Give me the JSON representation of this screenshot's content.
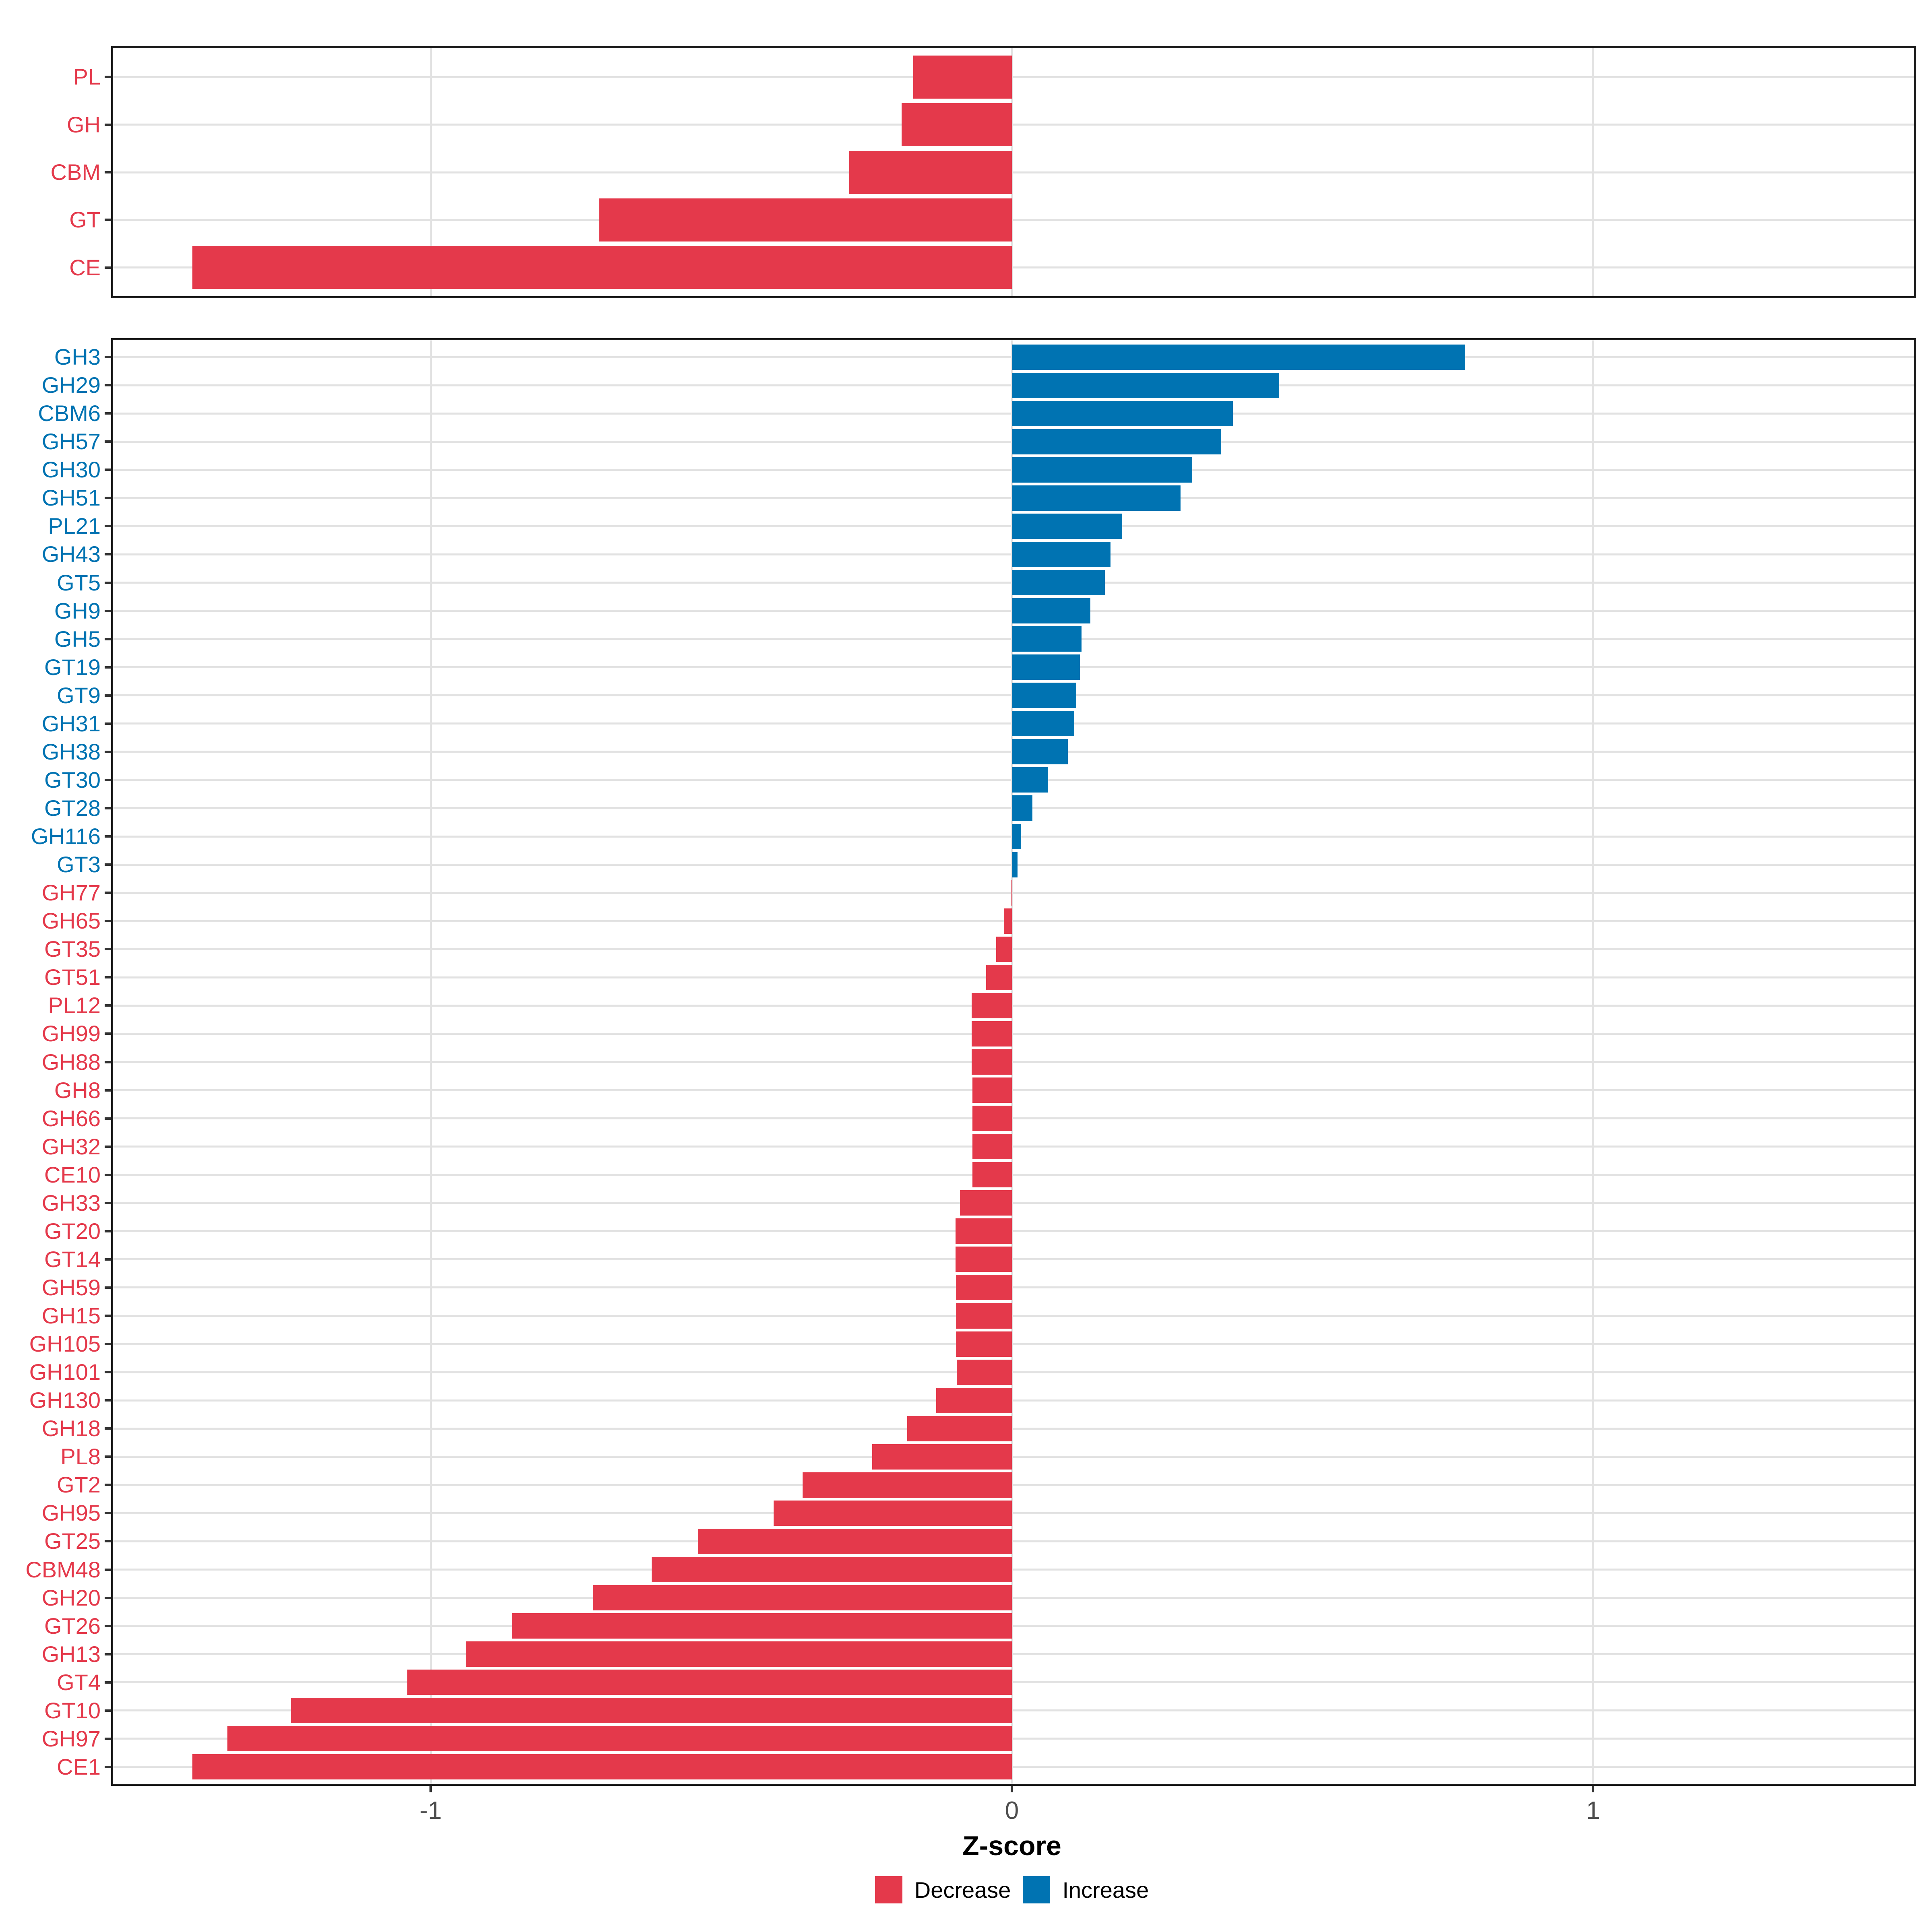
{
  "chart_data": [
    {
      "type": "bar",
      "orientation": "horizontal",
      "panel": "top-summary",
      "categories": [
        "PL",
        "GH",
        "CBM",
        "GT",
        "CE"
      ],
      "values": [
        -0.17,
        -0.19,
        -0.28,
        -0.71,
        -1.41
      ],
      "series_rule": "negative values = Decrease (red), positive values = Increase (blue)",
      "xlim": [
        -1.55,
        1.55
      ],
      "grid": "major gridlines only at -1, 0, 1",
      "xlabel": "Z-score"
    },
    {
      "type": "bar",
      "orientation": "horizontal",
      "panel": "bottom-families",
      "categories": [
        "GH3",
        "GH29",
        "CBM6",
        "GH57",
        "GH30",
        "GH51",
        "PL21",
        "GH43",
        "GT5",
        "GH9",
        "GH5",
        "GT19",
        "GT9",
        "GH31",
        "GH38",
        "GT30",
        "GT28",
        "GH116",
        "GT3",
        "GH77",
        "GH65",
        "GT35",
        "GT51",
        "PL12",
        "GH99",
        "GH88",
        "GH8",
        "GH66",
        "GH32",
        "CE10",
        "GH33",
        "GT20",
        "GT14",
        "GH59",
        "GH15",
        "GH105",
        "GH101",
        "GH130",
        "GH18",
        "PL8",
        "GT2",
        "GH95",
        "GT25",
        "CBM48",
        "GH20",
        "GT26",
        "GH13",
        "GT4",
        "GT10",
        "GH97",
        "CE1"
      ],
      "values": [
        0.78,
        0.46,
        0.38,
        0.36,
        0.31,
        0.29,
        0.19,
        0.17,
        0.16,
        0.135,
        0.12,
        0.117,
        0.111,
        0.107,
        0.096,
        0.062,
        0.035,
        0.016,
        0.01,
        -0.001,
        -0.014,
        -0.027,
        -0.044,
        -0.069,
        -0.069,
        -0.069,
        -0.068,
        -0.068,
        -0.068,
        -0.068,
        -0.089,
        -0.097,
        -0.097,
        -0.096,
        -0.096,
        -0.096,
        -0.095,
        -0.13,
        -0.18,
        -0.24,
        -0.36,
        -0.41,
        -0.54,
        -0.62,
        -0.72,
        -0.86,
        -0.94,
        -1.04,
        -1.24,
        -1.35,
        -1.41
      ],
      "series_rule": "negative values = Decrease (red), positive values = Increase (blue)",
      "xlim": [
        -1.55,
        1.55
      ],
      "grid": "major gridlines only at -1, 0, 1",
      "xlabel": "Z-score"
    }
  ],
  "axis": {
    "xlabel": "Z-score",
    "tick_values": [
      -1,
      0,
      1
    ],
    "tick_labels": [
      "-1",
      "0",
      "1"
    ]
  },
  "legend": {
    "items": [
      {
        "label": "Decrease",
        "color": "#e4394b"
      },
      {
        "label": "Increase",
        "color": "#0073b2"
      }
    ]
  },
  "colors": {
    "decrease": "#e4394b",
    "increase": "#0073b2",
    "gridline": "#e2e2e2",
    "tick_text": "#4d4d4d",
    "panel_border": "#1a1a1a"
  }
}
